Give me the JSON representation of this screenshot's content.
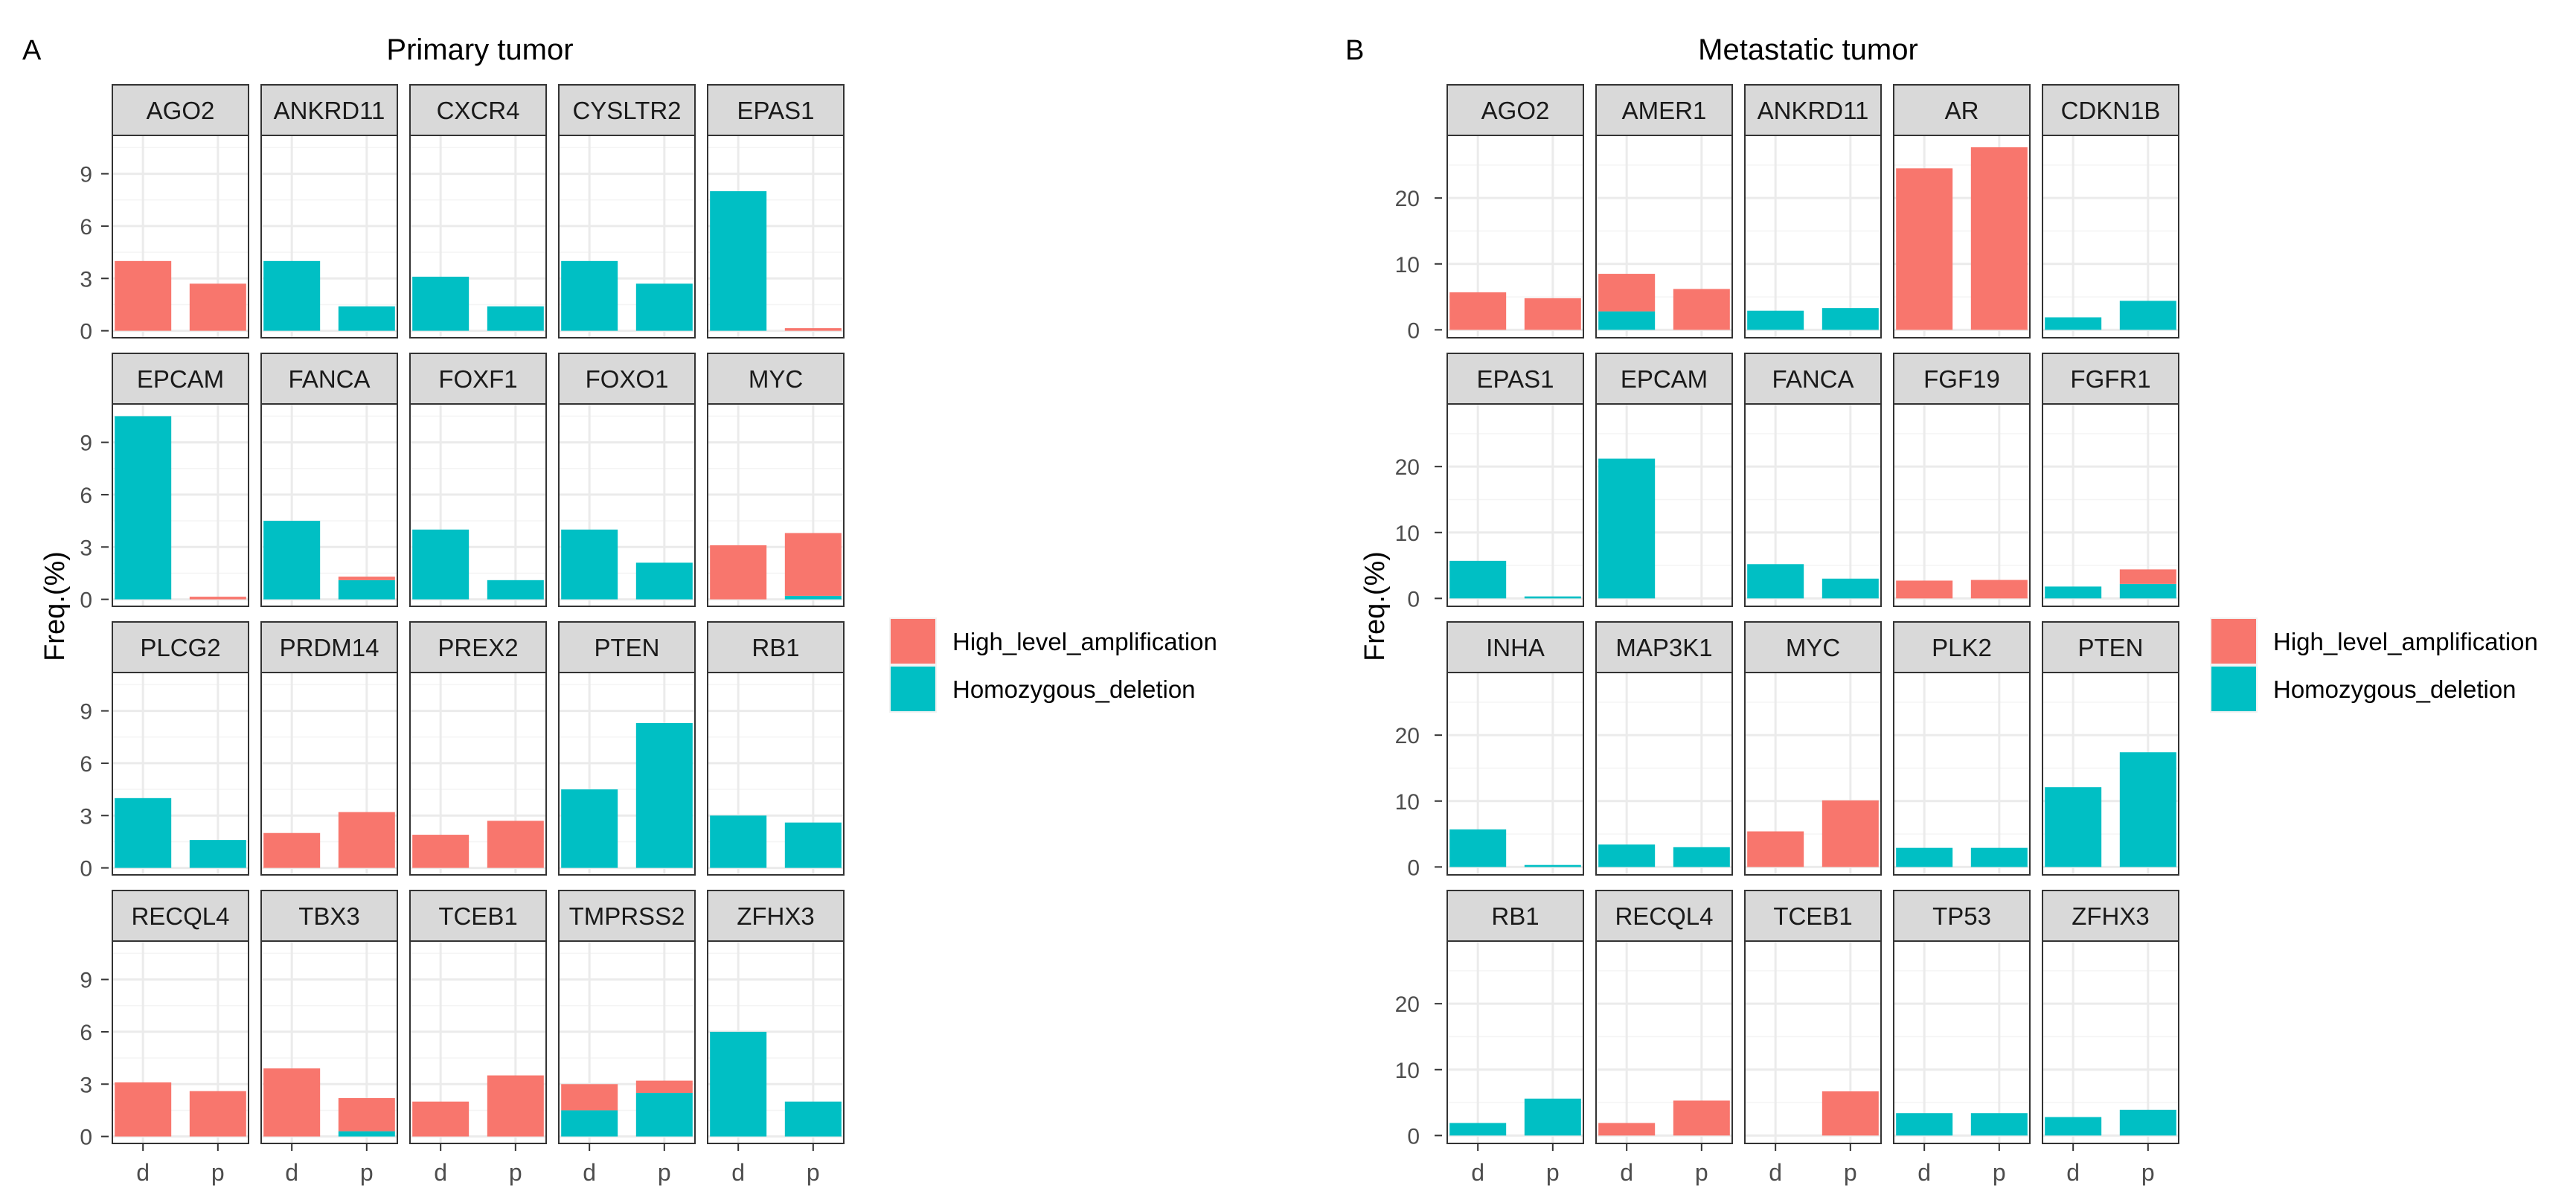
{
  "colors": {
    "amplification": "#F8766D",
    "deletion": "#00BFC4",
    "strip_fill": "#D9D9D9",
    "grid_major": "#EBEBEB",
    "grid_minor": "#F4F4F4",
    "panel_border": "#333333",
    "axis_text": "#4D4D4D"
  },
  "chart_data": [
    {
      "type": "bar",
      "panel_letter": "A",
      "title": "Primary tumor",
      "ylabel": "Freq.(%)",
      "xlabel": "",
      "categories": [
        "d",
        "p"
      ],
      "ylim": [
        -0.4,
        11.2
      ],
      "yticks": [
        0,
        3,
        6,
        9
      ],
      "ytick_labels": [
        "0",
        "3",
        "6",
        "9"
      ],
      "stacked": true,
      "grid": true,
      "legend": {
        "position": "right",
        "entries": [
          {
            "key": "amp",
            "label": "High_level_amplification"
          },
          {
            "key": "del",
            "label": "Homozygous_deletion"
          }
        ]
      },
      "facets": [
        {
          "gene": "AGO2",
          "del": [
            0,
            0
          ],
          "amp": [
            4.0,
            2.7
          ]
        },
        {
          "gene": "ANKRD11",
          "del": [
            4.0,
            1.4
          ],
          "amp": [
            0,
            0
          ]
        },
        {
          "gene": "CXCR4",
          "del": [
            3.1,
            1.4
          ],
          "amp": [
            0,
            0
          ]
        },
        {
          "gene": "CYSLTR2",
          "del": [
            4.0,
            2.7
          ],
          "amp": [
            0,
            0
          ]
        },
        {
          "gene": "EPAS1",
          "del": [
            8.0,
            0
          ],
          "amp": [
            0,
            0.15
          ]
        },
        {
          "gene": "EPCAM",
          "del": [
            10.5,
            0
          ],
          "amp": [
            0,
            0.15
          ]
        },
        {
          "gene": "FANCA",
          "del": [
            4.5,
            1.1
          ],
          "amp": [
            0,
            0.2
          ]
        },
        {
          "gene": "FOXF1",
          "del": [
            4.0,
            1.1
          ],
          "amp": [
            0,
            0
          ]
        },
        {
          "gene": "FOXO1",
          "del": [
            4.0,
            2.1
          ],
          "amp": [
            0,
            0
          ]
        },
        {
          "gene": "MYC",
          "del": [
            0,
            0.2
          ],
          "amp": [
            3.1,
            3.6
          ]
        },
        {
          "gene": "PLCG2",
          "del": [
            4.0,
            1.6
          ],
          "amp": [
            0,
            0
          ]
        },
        {
          "gene": "PRDM14",
          "del": [
            0,
            0
          ],
          "amp": [
            2.0,
            3.2
          ]
        },
        {
          "gene": "PREX2",
          "del": [
            0,
            0
          ],
          "amp": [
            1.9,
            2.7
          ]
        },
        {
          "gene": "PTEN",
          "del": [
            4.5,
            8.3
          ],
          "amp": [
            0,
            0
          ]
        },
        {
          "gene": "RB1",
          "del": [
            3.0,
            2.6
          ],
          "amp": [
            0,
            0
          ]
        },
        {
          "gene": "RECQL4",
          "del": [
            0,
            0
          ],
          "amp": [
            3.1,
            2.6
          ]
        },
        {
          "gene": "TBX3",
          "del": [
            0,
            0.3
          ],
          "amp": [
            3.9,
            1.9
          ]
        },
        {
          "gene": "TCEB1",
          "del": [
            0,
            0
          ],
          "amp": [
            2.0,
            3.5
          ]
        },
        {
          "gene": "TMPRSS2",
          "del": [
            1.5,
            2.5
          ],
          "amp": [
            1.5,
            0.7
          ]
        },
        {
          "gene": "ZFHX3",
          "del": [
            6.0,
            2.0
          ],
          "amp": [
            0,
            0
          ]
        }
      ]
    },
    {
      "type": "bar",
      "panel_letter": "B",
      "title": "Metastatic tumor",
      "ylabel": "Freq.(%)",
      "xlabel": "",
      "categories": [
        "d",
        "p"
      ],
      "ylim": [
        -1.2,
        29.5
      ],
      "yticks": [
        0,
        10,
        20
      ],
      "ytick_labels": [
        "0",
        "10",
        "20"
      ],
      "stacked": true,
      "grid": true,
      "legend": {
        "position": "right",
        "entries": [
          {
            "key": "amp",
            "label": "High_level_amplification"
          },
          {
            "key": "del",
            "label": "Homozygous_deletion"
          }
        ]
      },
      "facets": [
        {
          "gene": "AGO2",
          "del": [
            0,
            0
          ],
          "amp": [
            5.7,
            4.8
          ]
        },
        {
          "gene": "AMER1",
          "del": [
            2.8,
            0
          ],
          "amp": [
            5.7,
            6.2
          ]
        },
        {
          "gene": "ANKRD11",
          "del": [
            2.9,
            3.3
          ],
          "amp": [
            0,
            0
          ]
        },
        {
          "gene": "AR",
          "del": [
            0,
            0
          ],
          "amp": [
            24.5,
            27.7
          ]
        },
        {
          "gene": "CDKN1B",
          "del": [
            1.9,
            4.4
          ],
          "amp": [
            0,
            0
          ]
        },
        {
          "gene": "EPAS1",
          "del": [
            5.7,
            0.3
          ],
          "amp": [
            0,
            0
          ]
        },
        {
          "gene": "EPCAM",
          "del": [
            21.2,
            0
          ],
          "amp": [
            0,
            0
          ]
        },
        {
          "gene": "FANCA",
          "del": [
            5.2,
            3.0
          ],
          "amp": [
            0,
            0
          ]
        },
        {
          "gene": "FGF19",
          "del": [
            0,
            0
          ],
          "amp": [
            2.7,
            2.8
          ]
        },
        {
          "gene": "FGFR1",
          "del": [
            1.8,
            2.2
          ],
          "amp": [
            0,
            2.2
          ]
        },
        {
          "gene": "INHA",
          "del": [
            5.7,
            0.3
          ],
          "amp": [
            0,
            0
          ]
        },
        {
          "gene": "MAP3K1",
          "del": [
            3.4,
            3.0
          ],
          "amp": [
            0,
            0
          ]
        },
        {
          "gene": "MYC",
          "del": [
            0,
            0
          ],
          "amp": [
            5.4,
            10.1
          ]
        },
        {
          "gene": "PLK2",
          "del": [
            2.9,
            2.9
          ],
          "amp": [
            0,
            0
          ]
        },
        {
          "gene": "PTEN",
          "del": [
            12.1,
            17.4
          ],
          "amp": [
            0,
            0
          ]
        },
        {
          "gene": "RB1",
          "del": [
            1.9,
            5.6
          ],
          "amp": [
            0,
            0
          ]
        },
        {
          "gene": "RECQL4",
          "del": [
            0,
            0
          ],
          "amp": [
            1.9,
            5.3
          ]
        },
        {
          "gene": "TCEB1",
          "del": [
            0,
            0
          ],
          "amp": [
            0,
            6.7
          ]
        },
        {
          "gene": "TP53",
          "del": [
            3.4,
            3.4
          ],
          "amp": [
            0,
            0
          ]
        },
        {
          "gene": "ZFHX3",
          "del": [
            2.8,
            3.9
          ],
          "amp": [
            0,
            0
          ]
        }
      ]
    }
  ]
}
